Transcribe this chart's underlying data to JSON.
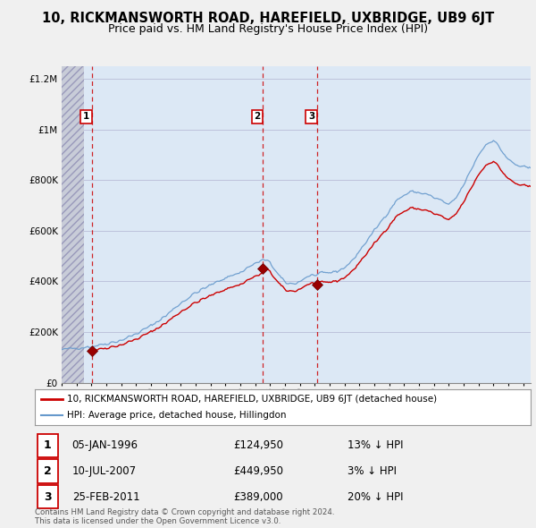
{
  "title": "10, RICKMANSWORTH ROAD, HAREFIELD, UXBRIDGE, UB9 6JT",
  "subtitle": "Price paid vs. HM Land Registry's House Price Index (HPI)",
  "transactions": [
    {
      "label": "1",
      "date": 1996.014,
      "price": 124950,
      "date_str": "05-JAN-1996",
      "pct": "13% ↓ HPI"
    },
    {
      "label": "2",
      "date": 2007.521,
      "price": 449950,
      "date_str": "10-JUL-2007",
      "pct": "3% ↓ HPI"
    },
    {
      "label": "3",
      "date": 2011.144,
      "price": 389000,
      "date_str": "25-FEB-2011",
      "pct": "20% ↓ HPI"
    }
  ],
  "legend_property": "10, RICKMANSWORTH ROAD, HAREFIELD, UXBRIDGE, UB9 6JT (detached house)",
  "legend_hpi": "HPI: Average price, detached house, Hillingdon",
  "footer": "Contains HM Land Registry data © Crown copyright and database right 2024.\nThis data is licensed under the Open Government Licence v3.0.",
  "ylim": [
    0,
    1250000
  ],
  "xlim_start": 1994.0,
  "xlim_end": 2025.5,
  "background_color": "#f0f0f0",
  "plot_bg_color": "#dce8f5",
  "red_line_color": "#cc0000",
  "blue_line_color": "#6699cc",
  "dashed_line_color": "#cc0000",
  "marker_color": "#990000",
  "grid_color": "#aaaacc",
  "title_fontsize": 10.5,
  "subtitle_fontsize": 9,
  "label_box_color": "#cc0000"
}
